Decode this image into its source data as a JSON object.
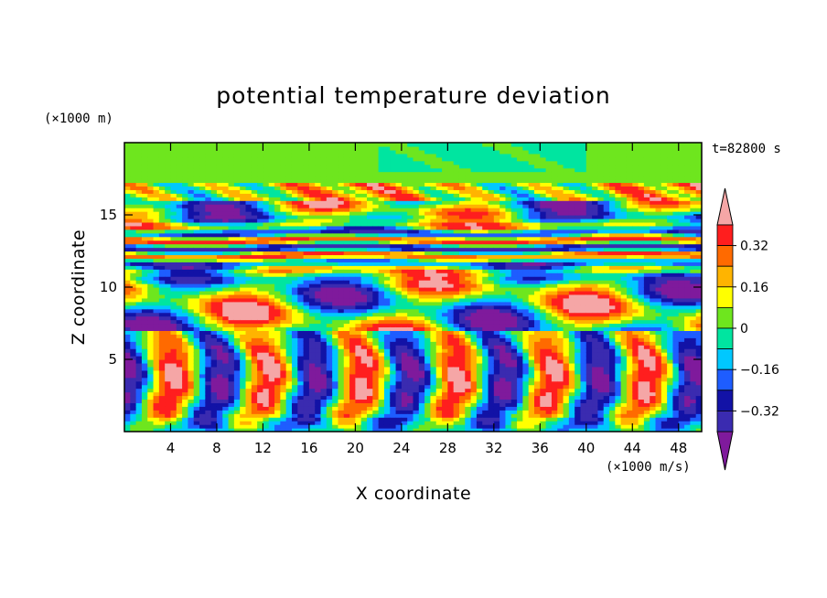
{
  "chart_data": {
    "type": "heatmap",
    "title": "potential temperature deviation",
    "xlabel": "X coordinate",
    "ylabel": "Z coordinate",
    "x_unit": "(×1000 m/s)",
    "y_unit": "(×1000 m)",
    "time_label": "t=82800 s",
    "xlim": [
      0,
      50
    ],
    "ylim": [
      0,
      20
    ],
    "x_ticks": [
      4,
      8,
      12,
      16,
      20,
      24,
      28,
      32,
      36,
      40,
      44,
      48
    ],
    "y_ticks": [
      5,
      10,
      15
    ],
    "colorbar": {
      "levels": [
        -0.4,
        -0.32,
        -0.24,
        -0.16,
        -0.08,
        0,
        0.08,
        0.16,
        0.24,
        0.32,
        0.4
      ],
      "tick_labels": [
        {
          "value": 0.32,
          "label": "0.32"
        },
        {
          "value": 0.16,
          "label": "0.16"
        },
        {
          "value": 0,
          "label": "0"
        },
        {
          "value": -0.16,
          "label": "−0.16"
        },
        {
          "value": -0.32,
          "label": "−0.32"
        }
      ],
      "colors": [
        "#7f1a9c",
        "#3a2bb0",
        "#1212a6",
        "#1e5dff",
        "#00c8ff",
        "#00e5a0",
        "#6ee61e",
        "#ffff00",
        "#ffb400",
        "#ff6a00",
        "#ff1e1e",
        "#f5a6a6"
      ],
      "extend": "both"
    }
  }
}
